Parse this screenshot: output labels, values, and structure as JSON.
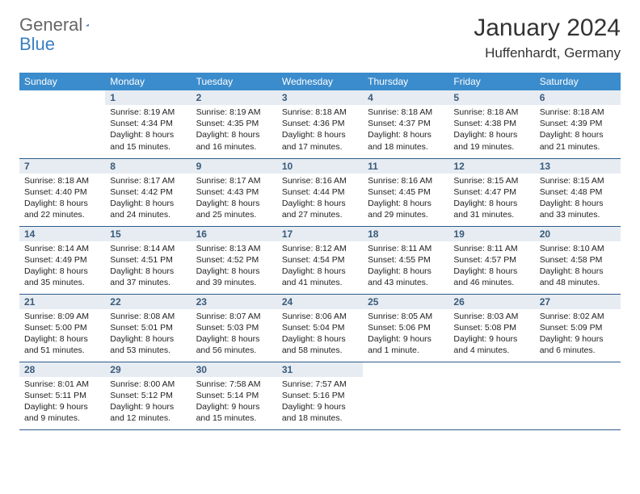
{
  "logo": {
    "text_gray": "General",
    "text_blue": "Blue"
  },
  "title": "January 2024",
  "location": "Huffenhardt, Germany",
  "header_row": [
    "Sunday",
    "Monday",
    "Tuesday",
    "Wednesday",
    "Thursday",
    "Friday",
    "Saturday"
  ],
  "colors": {
    "header_bg": "#3b8ccc",
    "header_text": "#ffffff",
    "daynum_bg": "#e6ecf2",
    "daynum_text": "#3a5a7a",
    "row_border": "#2f5d8a",
    "page_bg": "#ffffff",
    "logo_gray": "#666666",
    "logo_blue": "#3b7fc4"
  },
  "weeks": [
    [
      {
        "n": "",
        "sr": "",
        "ss": "",
        "dl1": "",
        "dl2": "",
        "empty": true
      },
      {
        "n": "1",
        "sr": "Sunrise: 8:19 AM",
        "ss": "Sunset: 4:34 PM",
        "dl1": "Daylight: 8 hours",
        "dl2": "and 15 minutes."
      },
      {
        "n": "2",
        "sr": "Sunrise: 8:19 AM",
        "ss": "Sunset: 4:35 PM",
        "dl1": "Daylight: 8 hours",
        "dl2": "and 16 minutes."
      },
      {
        "n": "3",
        "sr": "Sunrise: 8:18 AM",
        "ss": "Sunset: 4:36 PM",
        "dl1": "Daylight: 8 hours",
        "dl2": "and 17 minutes."
      },
      {
        "n": "4",
        "sr": "Sunrise: 8:18 AM",
        "ss": "Sunset: 4:37 PM",
        "dl1": "Daylight: 8 hours",
        "dl2": "and 18 minutes."
      },
      {
        "n": "5",
        "sr": "Sunrise: 8:18 AM",
        "ss": "Sunset: 4:38 PM",
        "dl1": "Daylight: 8 hours",
        "dl2": "and 19 minutes."
      },
      {
        "n": "6",
        "sr": "Sunrise: 8:18 AM",
        "ss": "Sunset: 4:39 PM",
        "dl1": "Daylight: 8 hours",
        "dl2": "and 21 minutes."
      }
    ],
    [
      {
        "n": "7",
        "sr": "Sunrise: 8:18 AM",
        "ss": "Sunset: 4:40 PM",
        "dl1": "Daylight: 8 hours",
        "dl2": "and 22 minutes."
      },
      {
        "n": "8",
        "sr": "Sunrise: 8:17 AM",
        "ss": "Sunset: 4:42 PM",
        "dl1": "Daylight: 8 hours",
        "dl2": "and 24 minutes."
      },
      {
        "n": "9",
        "sr": "Sunrise: 8:17 AM",
        "ss": "Sunset: 4:43 PM",
        "dl1": "Daylight: 8 hours",
        "dl2": "and 25 minutes."
      },
      {
        "n": "10",
        "sr": "Sunrise: 8:16 AM",
        "ss": "Sunset: 4:44 PM",
        "dl1": "Daylight: 8 hours",
        "dl2": "and 27 minutes."
      },
      {
        "n": "11",
        "sr": "Sunrise: 8:16 AM",
        "ss": "Sunset: 4:45 PM",
        "dl1": "Daylight: 8 hours",
        "dl2": "and 29 minutes."
      },
      {
        "n": "12",
        "sr": "Sunrise: 8:15 AM",
        "ss": "Sunset: 4:47 PM",
        "dl1": "Daylight: 8 hours",
        "dl2": "and 31 minutes."
      },
      {
        "n": "13",
        "sr": "Sunrise: 8:15 AM",
        "ss": "Sunset: 4:48 PM",
        "dl1": "Daylight: 8 hours",
        "dl2": "and 33 minutes."
      }
    ],
    [
      {
        "n": "14",
        "sr": "Sunrise: 8:14 AM",
        "ss": "Sunset: 4:49 PM",
        "dl1": "Daylight: 8 hours",
        "dl2": "and 35 minutes."
      },
      {
        "n": "15",
        "sr": "Sunrise: 8:14 AM",
        "ss": "Sunset: 4:51 PM",
        "dl1": "Daylight: 8 hours",
        "dl2": "and 37 minutes."
      },
      {
        "n": "16",
        "sr": "Sunrise: 8:13 AM",
        "ss": "Sunset: 4:52 PM",
        "dl1": "Daylight: 8 hours",
        "dl2": "and 39 minutes."
      },
      {
        "n": "17",
        "sr": "Sunrise: 8:12 AM",
        "ss": "Sunset: 4:54 PM",
        "dl1": "Daylight: 8 hours",
        "dl2": "and 41 minutes."
      },
      {
        "n": "18",
        "sr": "Sunrise: 8:11 AM",
        "ss": "Sunset: 4:55 PM",
        "dl1": "Daylight: 8 hours",
        "dl2": "and 43 minutes."
      },
      {
        "n": "19",
        "sr": "Sunrise: 8:11 AM",
        "ss": "Sunset: 4:57 PM",
        "dl1": "Daylight: 8 hours",
        "dl2": "and 46 minutes."
      },
      {
        "n": "20",
        "sr": "Sunrise: 8:10 AM",
        "ss": "Sunset: 4:58 PM",
        "dl1": "Daylight: 8 hours",
        "dl2": "and 48 minutes."
      }
    ],
    [
      {
        "n": "21",
        "sr": "Sunrise: 8:09 AM",
        "ss": "Sunset: 5:00 PM",
        "dl1": "Daylight: 8 hours",
        "dl2": "and 51 minutes."
      },
      {
        "n": "22",
        "sr": "Sunrise: 8:08 AM",
        "ss": "Sunset: 5:01 PM",
        "dl1": "Daylight: 8 hours",
        "dl2": "and 53 minutes."
      },
      {
        "n": "23",
        "sr": "Sunrise: 8:07 AM",
        "ss": "Sunset: 5:03 PM",
        "dl1": "Daylight: 8 hours",
        "dl2": "and 56 minutes."
      },
      {
        "n": "24",
        "sr": "Sunrise: 8:06 AM",
        "ss": "Sunset: 5:04 PM",
        "dl1": "Daylight: 8 hours",
        "dl2": "and 58 minutes."
      },
      {
        "n": "25",
        "sr": "Sunrise: 8:05 AM",
        "ss": "Sunset: 5:06 PM",
        "dl1": "Daylight: 9 hours",
        "dl2": "and 1 minute."
      },
      {
        "n": "26",
        "sr": "Sunrise: 8:03 AM",
        "ss": "Sunset: 5:08 PM",
        "dl1": "Daylight: 9 hours",
        "dl2": "and 4 minutes."
      },
      {
        "n": "27",
        "sr": "Sunrise: 8:02 AM",
        "ss": "Sunset: 5:09 PM",
        "dl1": "Daylight: 9 hours",
        "dl2": "and 6 minutes."
      }
    ],
    [
      {
        "n": "28",
        "sr": "Sunrise: 8:01 AM",
        "ss": "Sunset: 5:11 PM",
        "dl1": "Daylight: 9 hours",
        "dl2": "and 9 minutes."
      },
      {
        "n": "29",
        "sr": "Sunrise: 8:00 AM",
        "ss": "Sunset: 5:12 PM",
        "dl1": "Daylight: 9 hours",
        "dl2": "and 12 minutes."
      },
      {
        "n": "30",
        "sr": "Sunrise: 7:58 AM",
        "ss": "Sunset: 5:14 PM",
        "dl1": "Daylight: 9 hours",
        "dl2": "and 15 minutes."
      },
      {
        "n": "31",
        "sr": "Sunrise: 7:57 AM",
        "ss": "Sunset: 5:16 PM",
        "dl1": "Daylight: 9 hours",
        "dl2": "and 18 minutes."
      },
      {
        "n": "",
        "sr": "",
        "ss": "",
        "dl1": "",
        "dl2": "",
        "empty": true
      },
      {
        "n": "",
        "sr": "",
        "ss": "",
        "dl1": "",
        "dl2": "",
        "empty": true
      },
      {
        "n": "",
        "sr": "",
        "ss": "",
        "dl1": "",
        "dl2": "",
        "empty": true
      }
    ]
  ]
}
